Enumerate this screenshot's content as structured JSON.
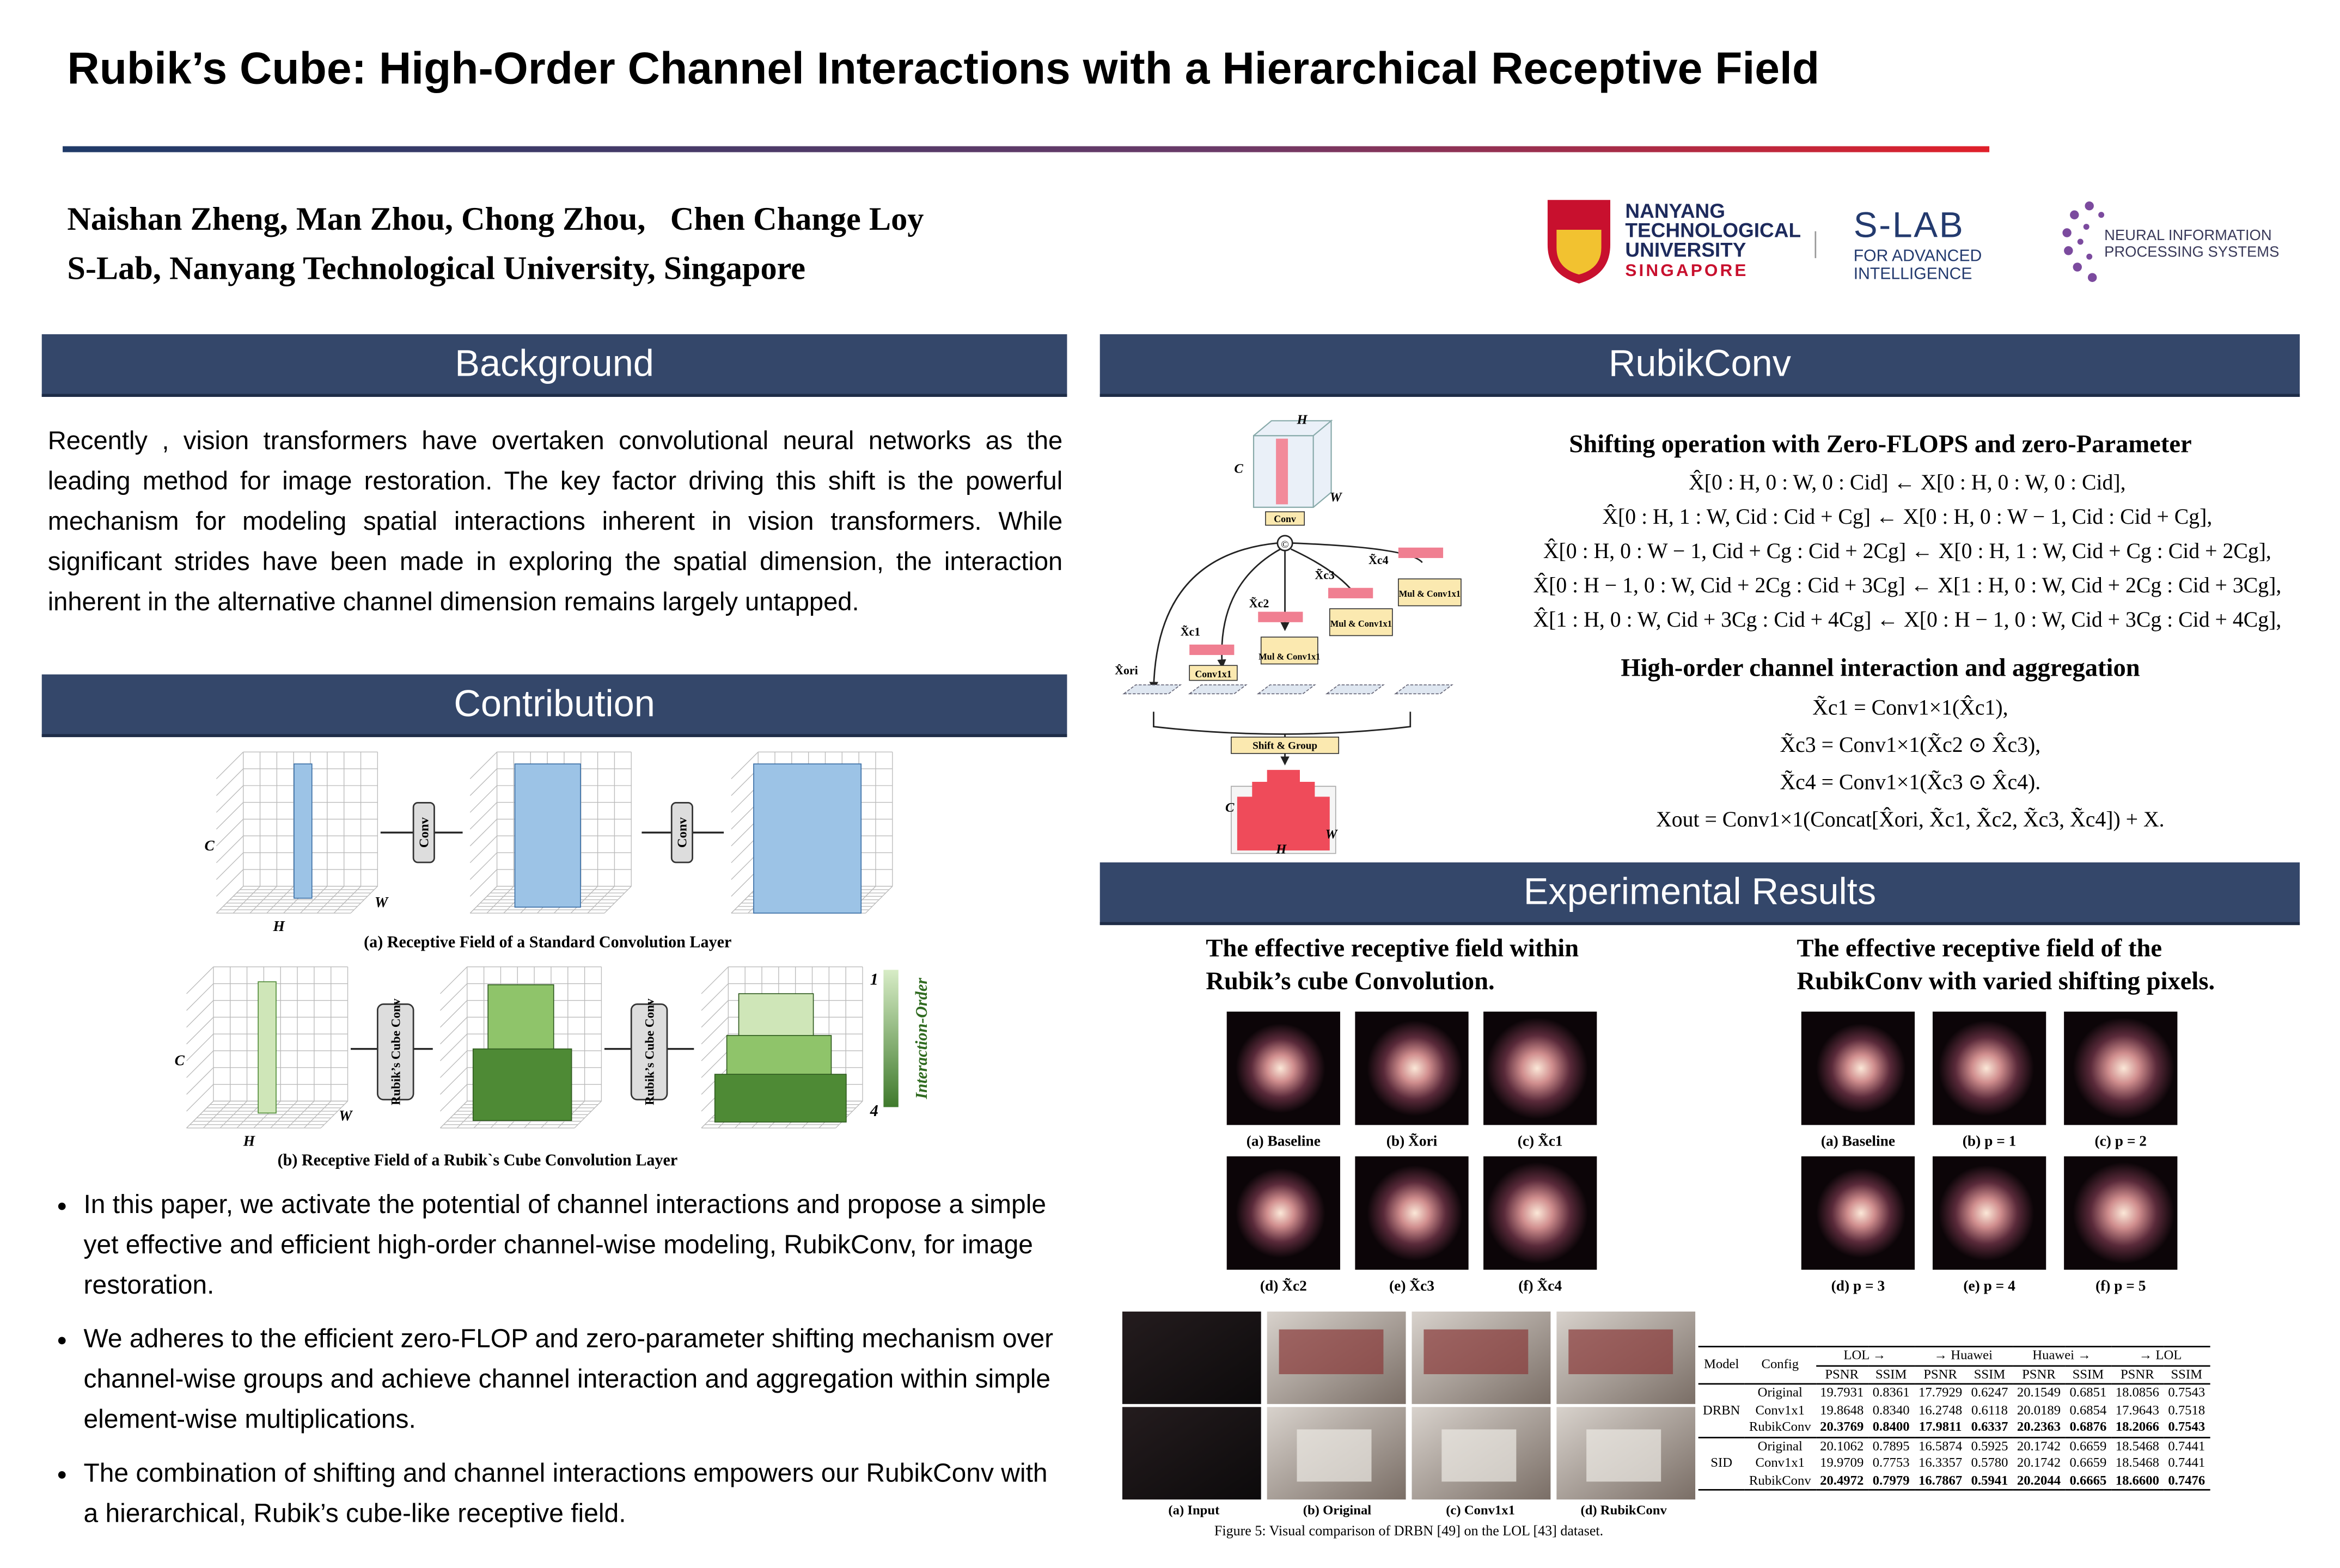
{
  "header": {
    "title": "Rubik’s Cube: High-Order Channel Interactions with a Hierarchical Receptive Field",
    "authors": "Naishan Zheng, Man Zhou, Chong Zhou,   Chen Change Loy",
    "affiliation": "S-Lab, Nanyang Technological University, Singapore"
  },
  "logos": {
    "ntu": [
      "NANYANG",
      "TECHNOLOGICAL",
      "UNIVERSITY",
      "SINGAPORE"
    ],
    "slab": [
      "S-LAB",
      "FOR ADVANCED",
      "INTELLIGENCE"
    ],
    "neurips": [
      "NEURAL INFORMATION",
      "PROCESSING SYSTEMS"
    ]
  },
  "background": {
    "heading": "Background",
    "text": "Recently , vision transformers have overtaken convolutional neural networks as the leading method for image restoration. The key factor driving this shift is the powerful mechanism for modeling spatial interactions inherent in vision transformers. While significant strides have been made in exploring the spatial dimension, the interaction inherent in the alternative channel dimension remains largely untapped."
  },
  "contribution": {
    "heading": "Contribution",
    "figure": {
      "axis_c": "C",
      "axis_h": "H",
      "axis_w": "W",
      "conv": "Conv",
      "rubik_conv": "Rubik’s Cube Conv",
      "legend_top": "1",
      "legend_bottom": "4",
      "legend_title": "Interaction-Order",
      "caption_a": "(a) Receptive Field of a Standard Convolution Layer",
      "caption_b": "(b) Receptive Field of a Rubik`s Cube Convolution Layer"
    },
    "bullets": [
      "In this paper, we activate the potential of channel interactions and propose a simple yet effective and efficient high-order channel-wise modeling, RubikConv, for image restoration.",
      "We adheres to the efficient zero-FLOP and zero-parameter shifting mechanism over channel-wise groups and achieve channel interaction and aggregation within simple element-wise multiplications.",
      "The combination of shifting and channel interactions empowers our RubikConv with a hierarchical, Rubik’s cube-like receptive field."
    ]
  },
  "rubikconv": {
    "heading": "RubikConv",
    "diagram": {
      "h": "H",
      "c": "C",
      "w": "W",
      "conv": "Conv",
      "concat": "©",
      "x_c1": "X̃c1",
      "x_c2": "X̃c2",
      "x_c3": "X̃c3",
      "x_c4": "X̃c4",
      "x_ori": "X̂ori",
      "conv1x1": "Conv1x1",
      "mul_conv": "Mul & Conv1x1",
      "shift_group": "Shift & Group"
    },
    "shift_title": "Shifting operation with Zero-FLOPS and zero-Parameter",
    "shift_equations": [
      "X̂[0 : H, 0 : W, 0 : Cid] ← X[0 : H, 0 : W, 0 : Cid],",
      "X̂[0 : H, 1 : W, Cid : Cid + Cg] ← X[0 : H, 0 : W − 1, Cid : Cid + Cg],",
      "X̂[0 : H, 0 : W − 1, Cid + Cg : Cid + 2Cg] ← X[0 : H, 1 : W, Cid + Cg : Cid + 2Cg],",
      "X̂[0 : H − 1, 0 : W, Cid + 2Cg : Cid + 3Cg] ← X[1 : H, 0 : W, Cid + 2Cg : Cid + 3Cg],",
      "X̂[1 : H, 0 : W, Cid + 3Cg : Cid + 4Cg] ← X[0 : H − 1, 0 : W, Cid + 3Cg : Cid + 4Cg],"
    ],
    "interaction_title": "High-order channel interaction and aggregation",
    "interaction_equations": [
      "X̃c1 = Conv1×1(X̂c1),",
      "X̃c3 = Conv1×1(X̃c2 ⊙ X̂c3),",
      "X̃c4 = Conv1×1(X̃c3 ⊙ X̂c4).",
      "Xout = Conv1×1(Concat[X̂ori, X̃c1, X̃c2, X̃c3, X̃c4]) + X."
    ]
  },
  "experiments": {
    "heading": "Experimental Results",
    "erf_left": {
      "title": "The effective receptive field within Rubik’s cube Convolution.",
      "captions": [
        "(a) Baseline",
        "(b) X̃ori",
        "(c) X̃c1",
        "(d) X̃c2",
        "(e) X̃c3",
        "(f) X̃c4"
      ]
    },
    "erf_right": {
      "title": "The effective receptive field of the RubikConv with varied shifting pixels.",
      "captions": [
        "(a) Baseline",
        "(b) p = 1",
        "(c) p = 2",
        "(d) p = 3",
        "(e) p = 4",
        "(f) p = 5"
      ]
    },
    "visual": {
      "captions": [
        "(a) Input",
        "(b) Original",
        "(c) Conv1x1",
        "(d) RubikConv"
      ],
      "figure_caption": "Figure 5: Visual comparison of DRBN [49] on the LOL [43] dataset."
    },
    "table": {
      "col_model": "Model",
      "col_config": "Config",
      "groups": [
        "LOL →",
        "→ Huawei",
        "Huawei →",
        "→ LOL"
      ],
      "metrics": [
        "PSNR",
        "SSIM"
      ],
      "sections": [
        {
          "model": "DRBN",
          "rows": [
            [
              "Original",
              "19.7931",
              "0.8361",
              "17.7929",
              "0.6247",
              "20.1549",
              "0.6851",
              "18.0856",
              "0.7543"
            ],
            [
              "Conv1x1",
              "19.8648",
              "0.8340",
              "16.2748",
              "0.6118",
              "20.0189",
              "0.6854",
              "17.9643",
              "0.7518"
            ],
            [
              "RubikConv",
              "20.3769",
              "0.8400",
              "17.9811",
              "0.6337",
              "20.2363",
              "0.6876",
              "18.2066",
              "0.7543"
            ]
          ]
        },
        {
          "model": "SID",
          "rows": [
            [
              "Original",
              "20.1062",
              "0.7895",
              "16.5874",
              "0.5925",
              "20.1742",
              "0.6659",
              "18.5468",
              "0.7441"
            ],
            [
              "Conv1x1",
              "19.9709",
              "0.7753",
              "16.3357",
              "0.5780",
              "20.1742",
              "0.6659",
              "18.5468",
              "0.7441"
            ],
            [
              "RubikConv",
              "20.4972",
              "0.7979",
              "16.7867",
              "0.5941",
              "20.2044",
              "0.6665",
              "18.6600",
              "0.7476"
            ]
          ]
        }
      ]
    }
  }
}
